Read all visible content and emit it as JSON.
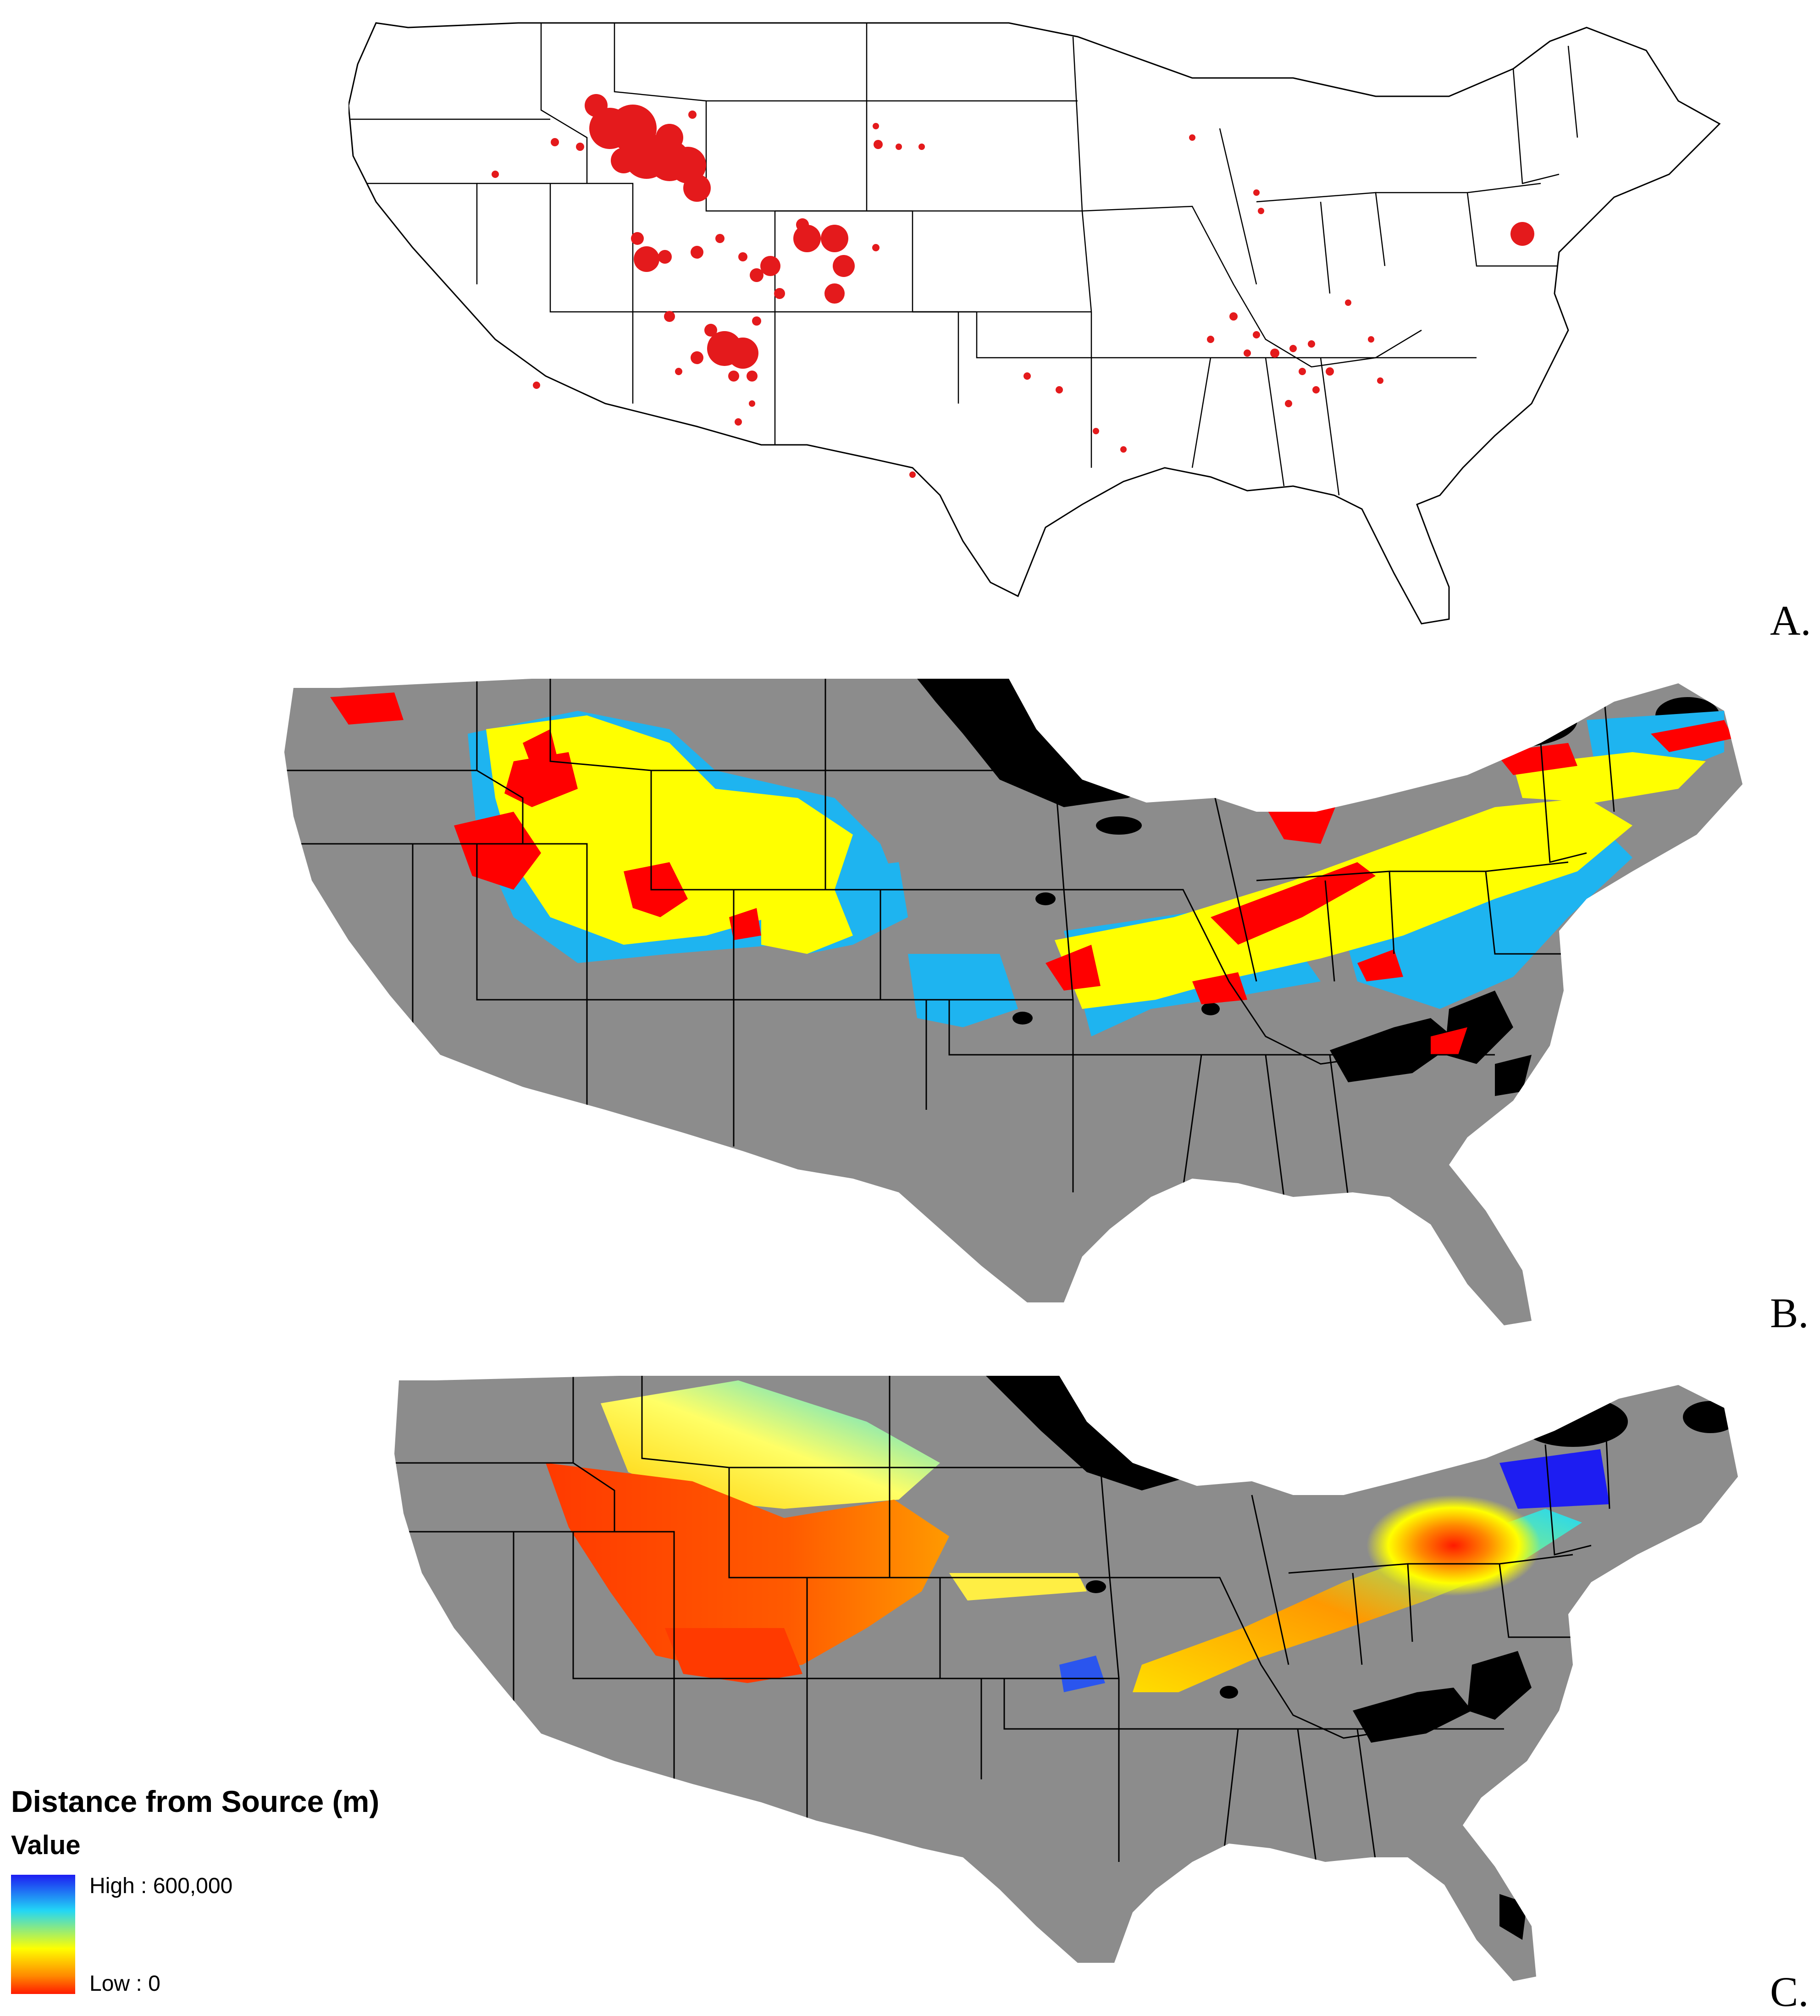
{
  "figure": {
    "panels": [
      {
        "id": "A",
        "letter": "A.",
        "style": "state outlines with red occurrence points"
      },
      {
        "id": "B",
        "letter": "B.",
        "style": "categorical map: red, yellow, light-blue classes over grey; black masked areas"
      },
      {
        "id": "C",
        "letter": "C.",
        "style": "continuous distance surface over grey; black masked areas"
      }
    ],
    "colors": {
      "points_red": "#e41a1c",
      "class_red": "#ff0000",
      "class_yellow": "#ffff00",
      "class_blue": "#1eb4f0",
      "land_grey": "#8c8c8c",
      "mask_black": "#000000"
    }
  },
  "legend": {
    "title": "Distance from Source (m)",
    "subtitle": "Value",
    "high_label": "High : 600,000",
    "low_label": "Low : 0",
    "high_value": 600000,
    "low_value": 0
  }
}
